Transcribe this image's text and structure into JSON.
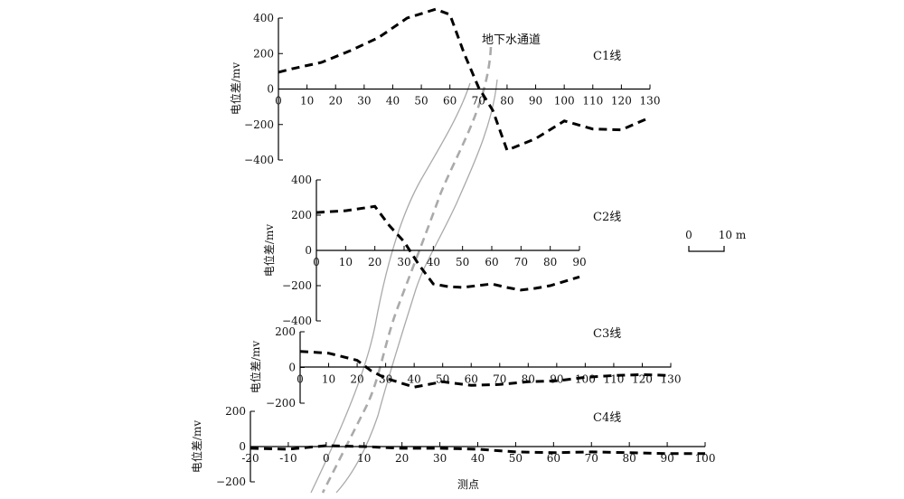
{
  "chart_data": [
    {
      "type": "line",
      "line_label": "C1线",
      "ylabel": "电位差/mv",
      "xlabel": "",
      "xlim": [
        0,
        130
      ],
      "ylim": [
        -400,
        400
      ],
      "x_ticks": [
        0,
        10,
        20,
        30,
        40,
        50,
        60,
        70,
        80,
        90,
        100,
        110,
        120,
        130
      ],
      "y_ticks": [
        -400,
        -200,
        0,
        200,
        400
      ],
      "series": [
        {
          "x": [
            0,
            5,
            15,
            25,
            35,
            45,
            55,
            60,
            65,
            70,
            75,
            80,
            90,
            100,
            110,
            120,
            130
          ],
          "y": [
            95,
            115,
            150,
            215,
            290,
            400,
            450,
            420,
            200,
            10,
            -120,
            -345,
            -280,
            -180,
            -225,
            -230,
            -160
          ]
        }
      ]
    },
    {
      "type": "line",
      "line_label": "C2线",
      "ylabel": "电位差/mv",
      "xlabel": "",
      "xlim": [
        0,
        90
      ],
      "ylim": [
        -400,
        400
      ],
      "x_ticks": [
        0,
        10,
        20,
        30,
        40,
        50,
        60,
        70,
        80,
        90
      ],
      "y_ticks": [
        -400,
        -200,
        0,
        200,
        400
      ],
      "series": [
        {
          "x": [
            0,
            10,
            20,
            25,
            30,
            35,
            40,
            45,
            50,
            55,
            60,
            65,
            70,
            75,
            80,
            90
          ],
          "y": [
            215,
            225,
            250,
            140,
            50,
            -80,
            -190,
            -205,
            -210,
            -200,
            -190,
            -210,
            -225,
            -215,
            -200,
            -150
          ]
        }
      ]
    },
    {
      "type": "line",
      "line_label": "C3线",
      "ylabel": "电位差/mv",
      "xlabel": "",
      "xlim": [
        0,
        130
      ],
      "ylim": [
        -200,
        200
      ],
      "x_ticks": [
        0,
        10,
        20,
        30,
        40,
        50,
        60,
        70,
        80,
        90,
        100,
        110,
        120,
        130
      ],
      "y_ticks": [
        -200,
        0,
        200
      ],
      "series": [
        {
          "x": [
            0,
            10,
            20,
            25,
            30,
            40,
            50,
            60,
            70,
            80,
            90,
            100,
            110,
            120,
            130
          ],
          "y": [
            90,
            80,
            40,
            -20,
            -60,
            -110,
            -80,
            -100,
            -95,
            -80,
            -75,
            -55,
            -45,
            -40,
            -45
          ]
        }
      ]
    },
    {
      "type": "line",
      "line_label": "C4线",
      "ylabel": "电位差/mv",
      "xlabel": "测点",
      "xlim": [
        -20,
        100
      ],
      "ylim": [
        -200,
        200
      ],
      "x_ticks": [
        -20,
        -10,
        0,
        10,
        20,
        30,
        40,
        50,
        60,
        70,
        80,
        90,
        100
      ],
      "y_ticks": [
        -200,
        0,
        200
      ],
      "series": [
        {
          "x": [
            -20,
            -10,
            0,
            10,
            20,
            30,
            40,
            50,
            60,
            70,
            80,
            90,
            100
          ],
          "y": [
            -10,
            -15,
            5,
            0,
            -10,
            -10,
            -15,
            -30,
            -35,
            -30,
            -35,
            -40,
            -40
          ]
        }
      ]
    }
  ],
  "channel_label": "地下水通道",
  "scale_bar": {
    "start": "0",
    "end": "10 m"
  },
  "colors": {
    "series": "#000000",
    "channel": "#aaaaaa"
  }
}
